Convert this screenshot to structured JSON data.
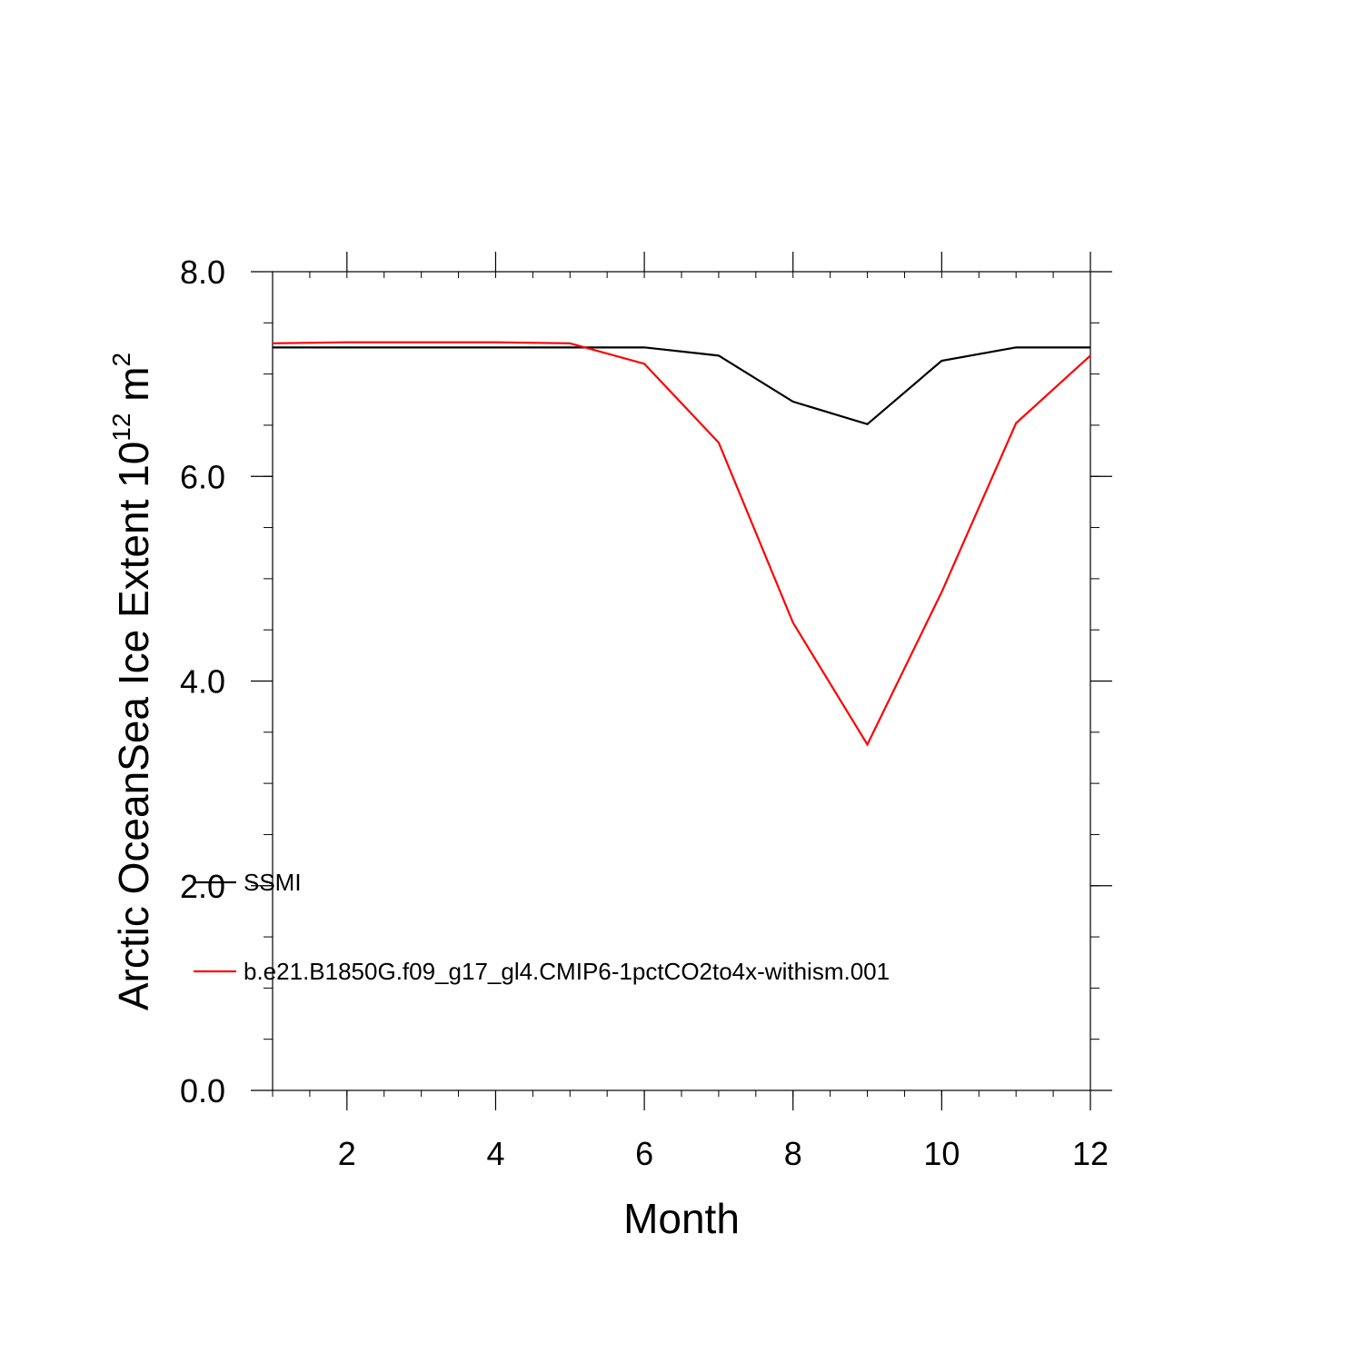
{
  "chart_data": {
    "type": "line",
    "xlabel": "Month",
    "ylabel": {
      "main": "Arctic OceanSea Ice Extent 10",
      "superscript": "12",
      "unit": " m",
      "unit_superscript": "2"
    },
    "xlim": [
      1,
      12
    ],
    "ylim": [
      0,
      8
    ],
    "x_ticks": [
      2,
      4,
      6,
      8,
      10,
      12
    ],
    "x_tick_labels": [
      "2",
      "4",
      "6",
      "8",
      "10",
      "12"
    ],
    "y_ticks": [
      0,
      2,
      4,
      6,
      8
    ],
    "y_tick_labels": [
      "0.0",
      "2.0",
      "4.0",
      "6.0",
      "8.0"
    ],
    "x": [
      1,
      2,
      3,
      4,
      5,
      6,
      7,
      8,
      9,
      10,
      11,
      12
    ],
    "series": [
      {
        "name": "SSMI",
        "color": "#000000",
        "values": [
          7.26,
          7.26,
          7.26,
          7.26,
          7.26,
          7.26,
          7.18,
          6.73,
          6.51,
          7.13,
          7.26,
          7.26
        ]
      },
      {
        "name": "b.e21.B1850G.f09_g17_gl4.CMIP6-1pctCO2to4x-withism.001",
        "color": "#ff0000",
        "values": [
          7.3,
          7.31,
          7.31,
          7.31,
          7.3,
          7.1,
          6.33,
          4.57,
          3.38,
          4.87,
          6.52,
          7.18
        ]
      }
    ],
    "legend_placement": "lower-left",
    "grid": false
  }
}
